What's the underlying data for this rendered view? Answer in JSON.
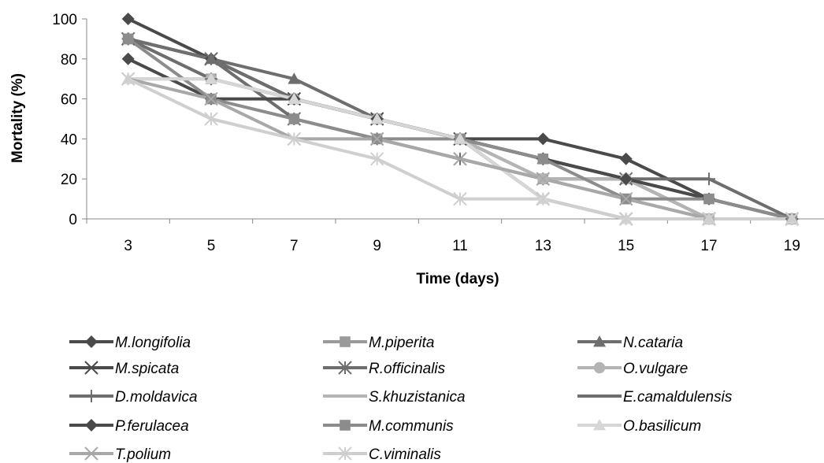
{
  "chart_data": {
    "type": "line",
    "xlabel": "Time (days)",
    "ylabel": "Mortality (%)",
    "x": [
      3,
      5,
      7,
      9,
      11,
      13,
      15,
      17,
      19
    ],
    "ylim": [
      0,
      100
    ],
    "yticks": [
      0,
      20,
      40,
      60,
      80,
      100
    ],
    "grid": false,
    "legend_position": "bottom",
    "series": [
      {
        "name": "M.longifolia",
        "marker": "diamond",
        "color": "#4a4a4a",
        "values": [
          100,
          80,
          60,
          50,
          40,
          40,
          30,
          10,
          0
        ]
      },
      {
        "name": "M.piperita",
        "marker": "square",
        "color": "#9a9a9a",
        "values": [
          90,
          70,
          60,
          50,
          40,
          20,
          10,
          0,
          0
        ]
      },
      {
        "name": "N.cataria",
        "marker": "triangle",
        "color": "#6e6e6e",
        "values": [
          90,
          80,
          70,
          50,
          40,
          30,
          20,
          0,
          0
        ]
      },
      {
        "name": "M.spicata",
        "marker": "x",
        "color": "#4a4a4a",
        "values": [
          90,
          80,
          60,
          50,
          40,
          10,
          0,
          0,
          0
        ]
      },
      {
        "name": "R.officinalis",
        "marker": "star",
        "color": "#6e6e6e",
        "values": [
          90,
          80,
          50,
          40,
          30,
          20,
          20,
          0,
          0
        ]
      },
      {
        "name": "O.vulgare",
        "marker": "circle",
        "color": "#b4b4b4",
        "values": [
          90,
          70,
          60,
          50,
          40,
          20,
          20,
          0,
          0
        ]
      },
      {
        "name": "D.moldavica",
        "marker": "plus",
        "color": "#6e6e6e",
        "values": [
          90,
          70,
          60,
          50,
          40,
          30,
          20,
          20,
          0
        ]
      },
      {
        "name": "S.khuzistanica",
        "marker": "dash",
        "color": "#b4b4b4",
        "values": [
          70,
          70,
          60,
          50,
          40,
          20,
          20,
          10,
          0
        ]
      },
      {
        "name": "E.camaldulensis",
        "marker": "dash",
        "color": "#6e6e6e",
        "values": [
          90,
          80,
          60,
          50,
          40,
          30,
          20,
          10,
          0
        ]
      },
      {
        "name": "P.ferulacea",
        "marker": "diamond",
        "color": "#4a4a4a",
        "values": [
          80,
          60,
          60,
          50,
          40,
          30,
          20,
          10,
          0
        ]
      },
      {
        "name": "M.communis",
        "marker": "square",
        "color": "#8c8c8c",
        "values": [
          90,
          60,
          50,
          40,
          40,
          30,
          10,
          10,
          0
        ]
      },
      {
        "name": "O.basilicum",
        "marker": "triangle",
        "color": "#d6d6d6",
        "values": [
          70,
          70,
          60,
          50,
          40,
          10,
          0,
          0,
          0
        ]
      },
      {
        "name": "T.polium",
        "marker": "x",
        "color": "#a8a8a8",
        "values": [
          70,
          60,
          40,
          40,
          30,
          20,
          10,
          0,
          0
        ]
      },
      {
        "name": "C.viminalis",
        "marker": "star",
        "color": "#cfcfcf",
        "values": [
          70,
          50,
          40,
          30,
          10,
          10,
          0,
          0,
          0
        ]
      }
    ]
  }
}
